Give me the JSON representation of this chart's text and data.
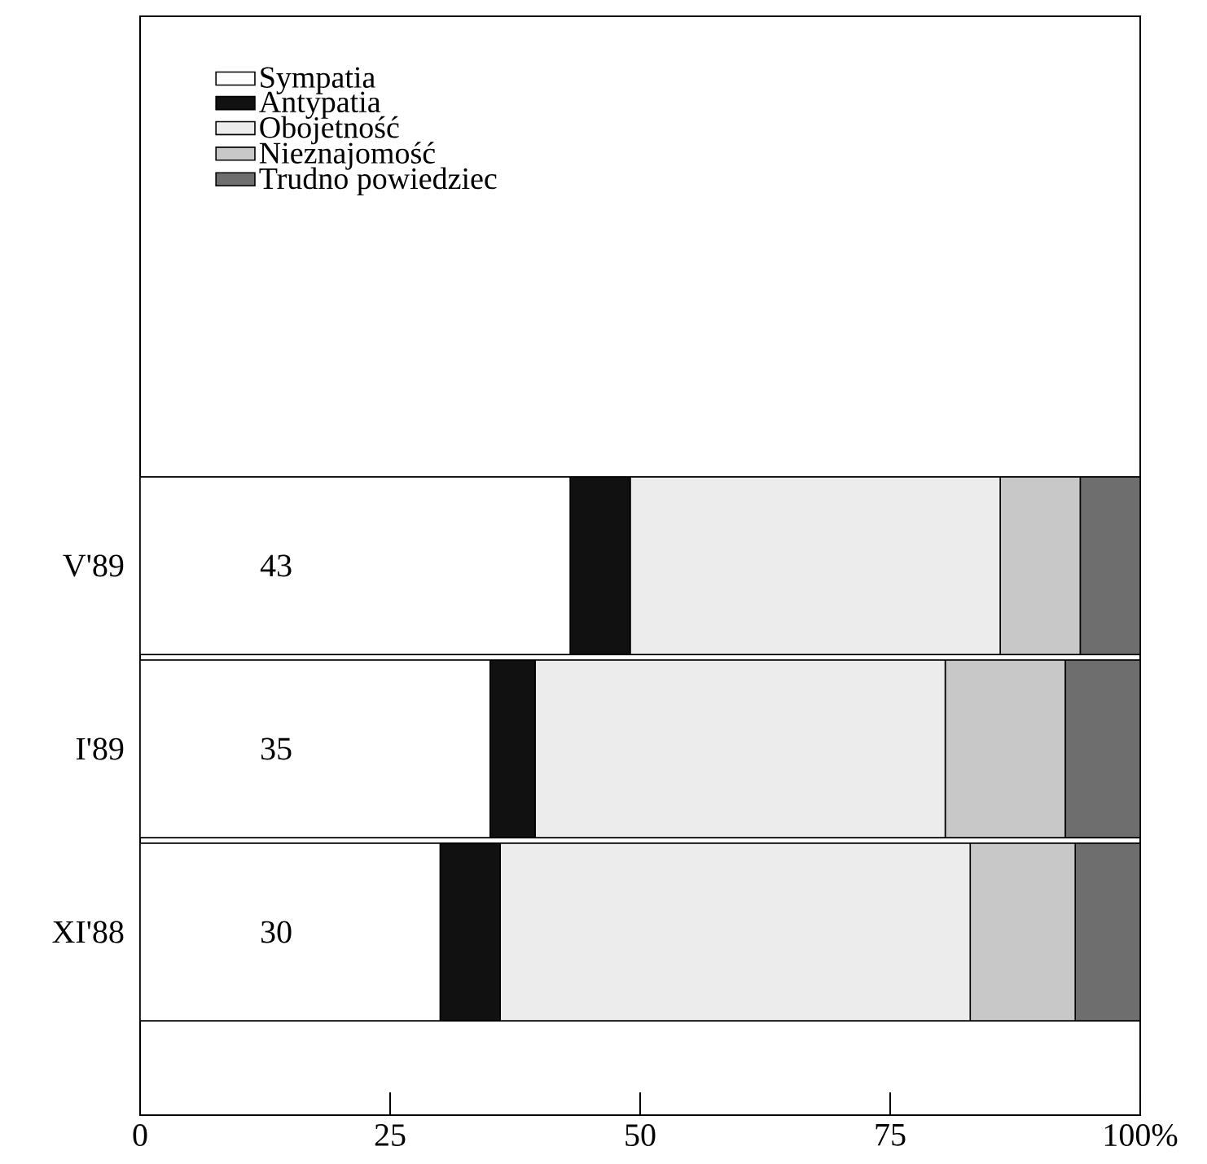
{
  "chart_data": {
    "type": "bar",
    "orientation": "horizontal",
    "stacked": true,
    "categories": [
      "V'89",
      "I'89",
      "XI'88"
    ],
    "series": [
      {
        "name": "Sympatia",
        "color": "#ffffff",
        "values": [
          43,
          35,
          30
        ],
        "value_labels": [
          "43",
          "35",
          "30"
        ]
      },
      {
        "name": "Antypatia",
        "color": "#111111",
        "values": [
          6,
          4.5,
          6
        ]
      },
      {
        "name": "Obojetność",
        "color": "#ececec",
        "values": [
          37,
          41,
          47
        ]
      },
      {
        "name": "Nieznajomość",
        "color": "#c8c8c8",
        "values": [
          8,
          12,
          10.5
        ]
      },
      {
        "name": "Trudno powiedziec",
        "color": "#6e6e6e",
        "values": [
          6,
          7.5,
          6.5
        ]
      }
    ],
    "xlim": [
      0,
      100
    ],
    "xticks": [
      0,
      25,
      50,
      75,
      {
        "value": 100,
        "label": "100%"
      }
    ],
    "legend": "top left",
    "grid": false
  }
}
